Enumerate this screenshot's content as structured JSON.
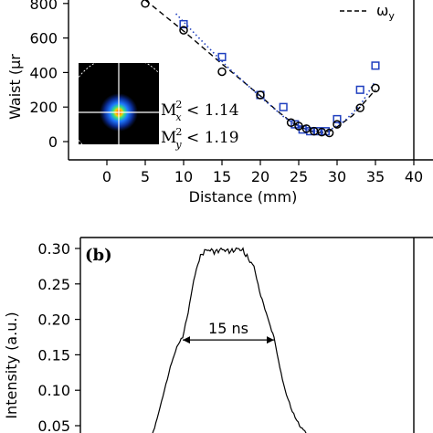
{
  "chart_data": [
    {
      "panel": "a",
      "type": "scatter",
      "xlabel": "Distance (mm)",
      "ylabel": "Waist (μm)",
      "ylabel_visible": "Waist (μr",
      "xlim": [
        -5,
        40
      ],
      "ylim": [
        -60,
        860
      ],
      "xticks": [
        0,
        5,
        10,
        15,
        20,
        25,
        30,
        35,
        40
      ],
      "xtick_labels": [
        "0",
        "5",
        "10",
        "15",
        "20",
        "25",
        "30",
        "35",
        "40"
      ],
      "yticks": [
        0,
        200,
        400,
        600,
        800
      ],
      "legend": {
        "visible_label": "ωy",
        "placement": "top-right"
      },
      "annotations": {
        "mx": "M",
        "mx_sub": "x",
        "mx_rest": " < 1.14",
        "my": "M",
        "my_sub": "y",
        "my_rest": " < 1.19",
        "sup": "2"
      },
      "series": [
        {
          "marker": "square",
          "color": "#1f3fbf",
          "x": [
            10,
            15,
            20,
            23,
            24.5,
            25.5,
            26.5,
            27.5,
            28.5,
            30,
            33,
            35
          ],
          "y": [
            680,
            490,
            270,
            200,
            100,
            70,
            60,
            60,
            60,
            130,
            300,
            440
          ]
        },
        {
          "marker": "circle",
          "color": "#000000",
          "x": [
            5,
            10,
            15,
            20,
            24,
            25,
            26,
            27,
            28,
            29,
            30,
            33,
            35
          ],
          "y": [
            800,
            645,
            405,
            270,
            110,
            90,
            75,
            60,
            55,
            50,
            100,
            195,
            310
          ]
        }
      ],
      "fit_lines": [
        {
          "name": "ωy",
          "style": "dashed",
          "color": "#000000",
          "x": [
            5,
            10,
            15,
            20,
            22,
            24,
            26,
            27,
            28,
            29,
            30,
            32,
            35
          ],
          "y": [
            820,
            640,
            450,
            265,
            185,
            115,
            70,
            55,
            52,
            60,
            85,
            150,
            300
          ]
        },
        {
          "style": "dotted",
          "color": "#1f3fbf",
          "x": [
            9,
            12,
            16,
            20,
            23,
            25,
            27,
            29,
            31,
            33,
            35
          ],
          "y": [
            740,
            600,
            420,
            260,
            145,
            85,
            60,
            65,
            120,
            210,
            350
          ]
        }
      ]
    },
    {
      "panel": "b",
      "type": "line",
      "ylabel": "Intensity (a.u.)",
      "label": "(b)",
      "ylim": [
        0.04,
        0.31
      ],
      "yticks": [
        0.05,
        0.1,
        0.15,
        0.2,
        0.25,
        0.3
      ],
      "ytick_labels": [
        "0.05",
        "0.10",
        "0.15",
        "0.20",
        "0.25",
        "0.30"
      ],
      "annotation": "15 ns",
      "width_marker": {
        "t_start": 200,
        "t_end": 300,
        "value": 0.171
      },
      "trace": {
        "color": "#000000",
        "t": [
          157,
          165,
          172,
          180,
          188,
          195,
          200,
          206,
          212,
          218,
          224,
          230,
          236,
          242,
          248,
          254,
          260,
          266,
          272,
          278,
          284,
          290,
          296,
          300,
          305,
          312,
          320,
          328,
          335,
          340
        ],
        "values": [
          0.02,
          0.03,
          0.06,
          0.1,
          0.14,
          0.165,
          0.175,
          0.21,
          0.255,
          0.285,
          0.297,
          0.298,
          0.295,
          0.299,
          0.297,
          0.296,
          0.3,
          0.297,
          0.285,
          0.275,
          0.24,
          0.215,
          0.19,
          0.175,
          0.14,
          0.1,
          0.07,
          0.05,
          0.04,
          0.03
        ]
      }
    }
  ],
  "labels": {
    "panel_b": "(b)",
    "fwhm": "15 ns"
  }
}
